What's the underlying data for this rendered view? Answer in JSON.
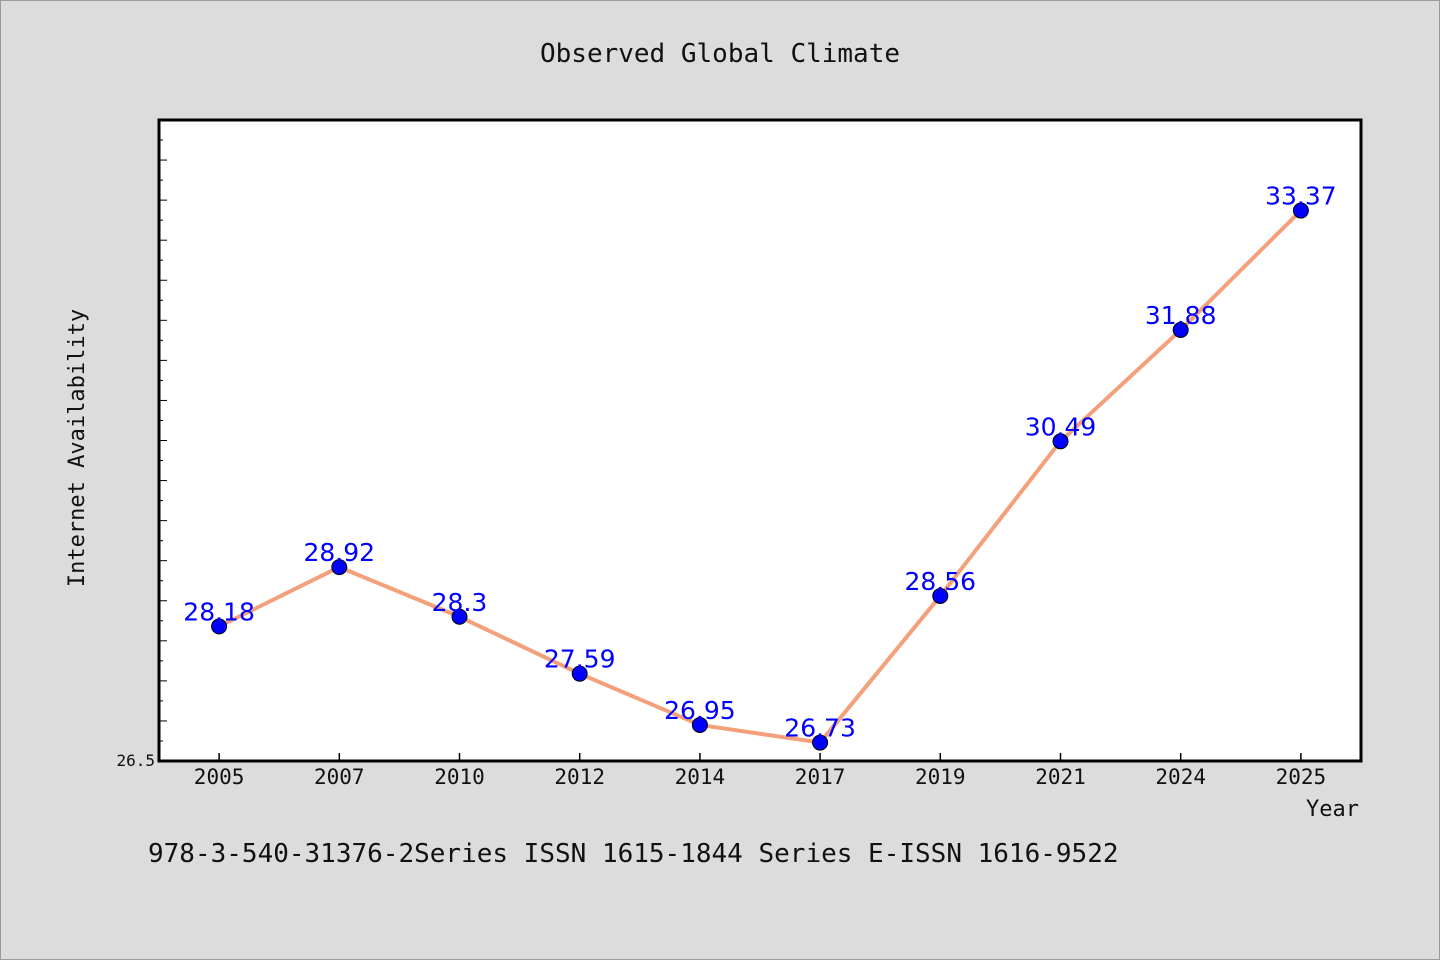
{
  "chart_data": {
    "type": "line",
    "title": "Observed Global Climate",
    "xlabel": "Year",
    "ylabel": "Internet Availability",
    "categories": [
      "2005",
      "2007",
      "2010",
      "2012",
      "2014",
      "2017",
      "2019",
      "2021",
      "2024",
      "2025"
    ],
    "series": [
      {
        "values": [
          28.18,
          28.92,
          28.3,
          27.59,
          26.95,
          26.73,
          28.56,
          30.49,
          31.88,
          33.37
        ],
        "labels": [
          "28.18",
          "28.92",
          "28.3",
          "27.59",
          "26.95",
          "26.73",
          "28.56",
          "30.49",
          "31.88",
          "33.37"
        ]
      }
    ],
    "ylim": [
      26.5,
      34.5
    ],
    "yticks": [
      "26.5"
    ],
    "grid": false,
    "line_color": "#f4a07a",
    "marker_color": "#0000ff",
    "label_color": "#0000ff",
    "background_color": "#dcdcdc"
  },
  "footer": {
    "text": "978-3-540-31376-2Series ISSN 1615-1844 Series E-ISSN 1616-9522"
  }
}
